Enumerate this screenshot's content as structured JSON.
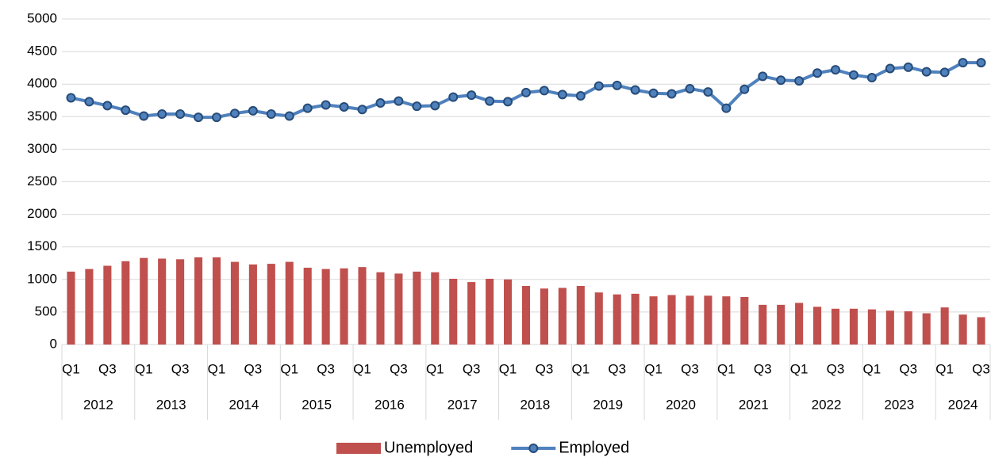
{
  "chart_data": {
    "type": "combo",
    "categories": [
      "Q1",
      null,
      "Q3",
      null,
      "Q1",
      null,
      "Q3",
      null,
      "Q1",
      null,
      "Q3",
      null,
      "Q1",
      null,
      "Q3",
      null,
      "Q1",
      null,
      "Q3",
      null,
      "Q1",
      null,
      "Q3",
      null,
      "Q1",
      null,
      "Q3",
      null,
      "Q1",
      null,
      "Q3",
      null,
      "Q1",
      null,
      "Q3",
      null,
      "Q1",
      null,
      "Q3",
      null,
      "Q1",
      null,
      "Q3",
      null,
      "Q1",
      null,
      "Q3",
      null,
      "Q1",
      null,
      "Q3"
    ],
    "years": [
      "2012",
      "2013",
      "2014",
      "2015",
      "2016",
      "2017",
      "2018",
      "2019",
      "2020",
      "2021",
      "2022",
      "2023",
      "2024"
    ],
    "series": [
      {
        "name": "Unemployed",
        "type": "bar",
        "color": "#c0504d",
        "values": [
          1120,
          1160,
          1210,
          1280,
          1330,
          1320,
          1310,
          1340,
          1340,
          1270,
          1230,
          1240,
          1270,
          1180,
          1160,
          1170,
          1190,
          1110,
          1090,
          1120,
          1110,
          1010,
          960,
          1010,
          1000,
          900,
          860,
          870,
          900,
          800,
          770,
          780,
          740,
          760,
          750,
          750,
          740,
          730,
          610,
          610,
          640,
          580,
          550,
          550,
          540,
          520,
          510,
          480,
          570,
          460,
          420
        ]
      },
      {
        "name": "Employed",
        "type": "line",
        "color": "#4f81bd",
        "values": [
          3790,
          3730,
          3670,
          3600,
          3510,
          3540,
          3540,
          3490,
          3490,
          3550,
          3590,
          3540,
          3510,
          3630,
          3680,
          3650,
          3610,
          3710,
          3740,
          3660,
          3670,
          3800,
          3830,
          3740,
          3730,
          3870,
          3900,
          3840,
          3820,
          3970,
          3980,
          3910,
          3860,
          3850,
          3930,
          3880,
          3630,
          3920,
          4120,
          4060,
          4050,
          4170,
          4220,
          4140,
          4100,
          4240,
          4260,
          4190,
          4180,
          4330,
          4330
        ]
      }
    ],
    "ylim": [
      0,
      5000
    ],
    "yticks": [
      0,
      500,
      1000,
      1500,
      2000,
      2500,
      3000,
      3500,
      4000,
      4500,
      5000
    ],
    "grid": true,
    "legend": "bottom"
  }
}
